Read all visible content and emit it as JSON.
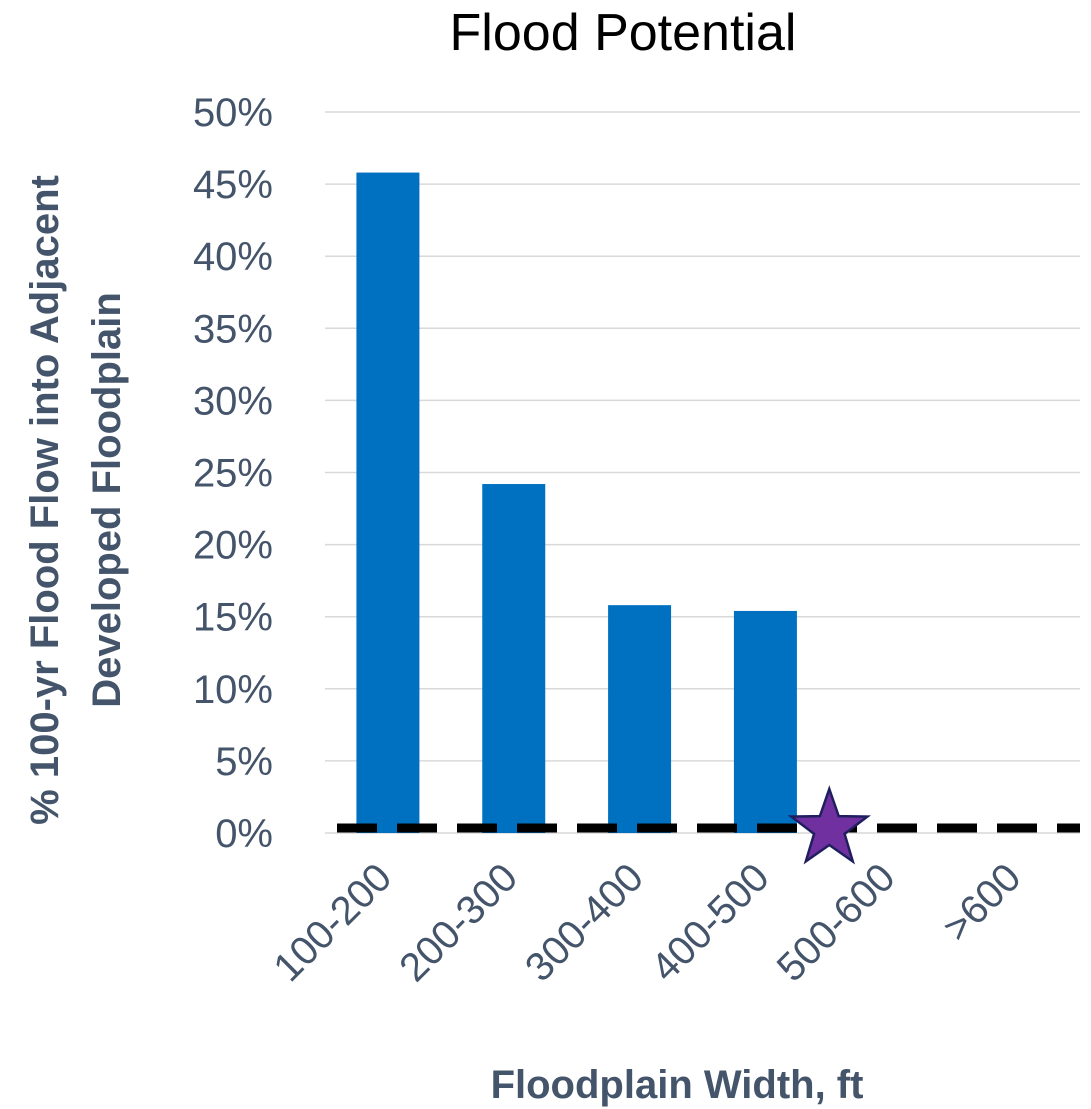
{
  "chart_data": {
    "type": "bar",
    "title": "Flood Potential",
    "xlabel": "Floodplain Width, ft",
    "ylabel_lines": [
      "% 100-yr Flood Flow into Adjacent",
      "Developed Floodplain"
    ],
    "categories": [
      "100-200",
      "200-300",
      "300-400",
      "400-500",
      "500-600",
      ">600"
    ],
    "values": [
      0.458,
      0.242,
      0.158,
      0.154,
      0,
      0
    ],
    "ylim": [
      0,
      0.5
    ],
    "yticks": [
      "0%",
      "5%",
      "10%",
      "15%",
      "20%",
      "25%",
      "30%",
      "35%",
      "40%",
      "45%",
      "50%"
    ],
    "grid": true,
    "bar_color": "#0070c0",
    "reference_line": {
      "value": 0,
      "style": "dashed",
      "color": "#000000"
    },
    "marker": {
      "shape": "star",
      "x_category_boundary": "400-500/500-600",
      "y": 0,
      "color": "#7030a0"
    }
  }
}
